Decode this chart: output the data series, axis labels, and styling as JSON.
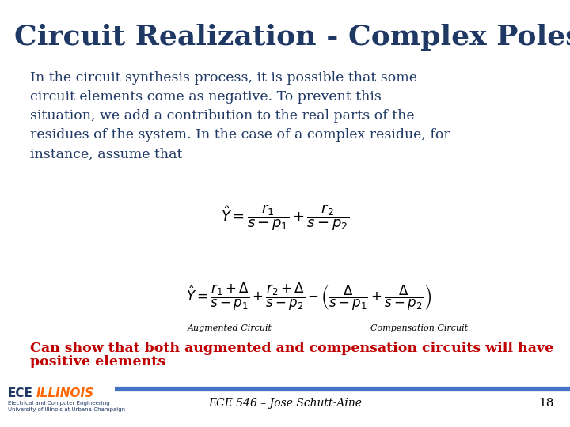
{
  "title": "Circuit Realization - Complex Poles",
  "title_color": "#1F3864",
  "title_fontsize": 26,
  "body_text": "In the circuit synthesis process, it is possible that some\ncircuit elements come as negative. To prevent this\nsituation, we add a contribution to the real parts of the\nresidues of the system. In the case of a complex residue, for\ninstance, assume that",
  "body_color": "#1F3864",
  "body_fontsize": 12.5,
  "eq1": "$\\hat{Y} = \\dfrac{r_1}{s - p_1} + \\dfrac{r_2}{s - p_2}$",
  "eq2_full": "$\\hat{Y} = \\dfrac{r_1 + \\Delta}{s - p_1} + \\dfrac{r_2 + \\Delta}{s - p_2} - \\left(\\dfrac{\\Delta}{s - p_1} + \\dfrac{\\Delta}{s - p_2}\\right)$",
  "label_augmented": "Augmented Circuit",
  "label_compensation": "Compensation Circuit",
  "conclusion_line1": "Can show that both augmented and compensation circuits will have",
  "conclusion_line2": "positive elements",
  "conclusion_color": "#C00000",
  "conclusion_fontsize": 12.5,
  "footer_text": "ECE 546 – Jose Schutt-Aine",
  "footer_page": "18",
  "bg_color": "#FFFFFF",
  "line_color": "#4472C4",
  "logo_ece_color": "#1F3864",
  "logo_ill_color": "#FF6600",
  "logo_sub_color": "#1F3864"
}
